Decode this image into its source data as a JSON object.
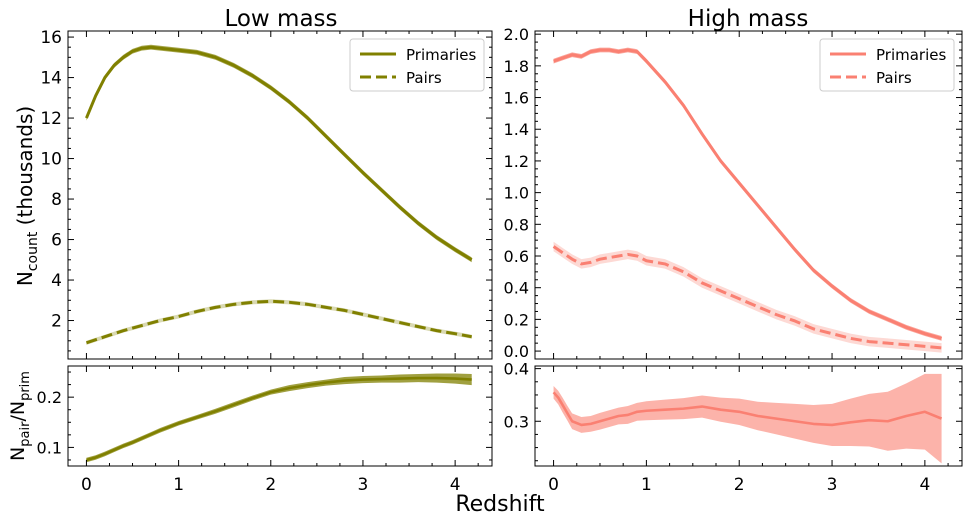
{
  "figure": {
    "xlabel": "Redshift",
    "ylabel_main_base": "N",
    "ylabel_main_sub": "count",
    "ylabel_main_rest": " (thousands)",
    "ylabel_ratio_a": "N",
    "ylabel_ratio_a_sub": "pair",
    "ylabel_ratio_b": "/N",
    "ylabel_ratio_b_sub": "prim"
  },
  "chart_data": [
    {
      "panel": "low-main",
      "type": "line",
      "title": "Low mass",
      "color": "#808000",
      "xlim": [
        -0.2,
        4.4
      ],
      "ylim": [
        0.1,
        16.3
      ],
      "xticks": [
        0,
        1,
        2,
        3,
        4
      ],
      "yticks": [
        2,
        4,
        6,
        8,
        10,
        12,
        14,
        16
      ],
      "legend": "top-right",
      "series": [
        {
          "name": "Primaries",
          "style": "solid",
          "x": [
            0,
            0.1,
            0.2,
            0.3,
            0.4,
            0.5,
            0.6,
            0.7,
            0.8,
            0.9,
            1.0,
            1.2,
            1.4,
            1.6,
            1.8,
            2.0,
            2.2,
            2.4,
            2.6,
            2.8,
            3.0,
            3.2,
            3.4,
            3.6,
            3.8,
            4.0,
            4.18
          ],
          "y": [
            12.0,
            13.1,
            14.0,
            14.6,
            15.0,
            15.3,
            15.45,
            15.5,
            15.45,
            15.4,
            15.35,
            15.25,
            15.0,
            14.6,
            14.1,
            13.5,
            12.8,
            12.0,
            11.1,
            10.2,
            9.3,
            8.45,
            7.6,
            6.8,
            6.1,
            5.5,
            5.0
          ],
          "band": 0.12
        },
        {
          "name": "Pairs",
          "style": "dashed",
          "x": [
            0,
            0.2,
            0.4,
            0.6,
            0.8,
            1.0,
            1.2,
            1.4,
            1.6,
            1.8,
            2.0,
            2.2,
            2.4,
            2.6,
            2.8,
            3.0,
            3.2,
            3.4,
            3.6,
            3.8,
            4.0,
            4.18
          ],
          "y": [
            0.9,
            1.2,
            1.5,
            1.75,
            2.0,
            2.2,
            2.45,
            2.65,
            2.8,
            2.9,
            2.95,
            2.9,
            2.8,
            2.65,
            2.5,
            2.3,
            2.1,
            1.9,
            1.7,
            1.5,
            1.35,
            1.2
          ],
          "band": 0.1
        }
      ]
    },
    {
      "panel": "high-main",
      "type": "line",
      "title": "High mass",
      "color": "#fa8072",
      "xlim": [
        -0.2,
        4.4
      ],
      "ylim": [
        -0.05,
        2.02
      ],
      "xticks": [
        0,
        1,
        2,
        3,
        4
      ],
      "yticks": [
        0.0,
        0.2,
        0.4,
        0.6,
        0.8,
        1.0,
        1.2,
        1.4,
        1.6,
        1.8,
        2.0
      ],
      "ytick_labels": [
        "0.0",
        "0.2",
        "0.4",
        "0.6",
        "0.8",
        "1.0",
        "1.2",
        "1.4",
        "1.6",
        "1.8",
        "2.0"
      ],
      "legend": "top-right",
      "series": [
        {
          "name": "Primaries",
          "style": "solid",
          "x": [
            0,
            0.1,
            0.2,
            0.3,
            0.4,
            0.5,
            0.6,
            0.7,
            0.8,
            0.9,
            1.0,
            1.2,
            1.4,
            1.6,
            1.8,
            2.0,
            2.2,
            2.4,
            2.6,
            2.8,
            3.0,
            3.2,
            3.4,
            3.6,
            3.8,
            4.0,
            4.18
          ],
          "y": [
            1.83,
            1.85,
            1.87,
            1.86,
            1.89,
            1.9,
            1.9,
            1.89,
            1.9,
            1.89,
            1.83,
            1.7,
            1.55,
            1.37,
            1.2,
            1.06,
            0.92,
            0.78,
            0.64,
            0.51,
            0.41,
            0.32,
            0.25,
            0.2,
            0.15,
            0.11,
            0.08
          ],
          "band": 0.015
        },
        {
          "name": "Pairs",
          "style": "dashed",
          "x": [
            0,
            0.1,
            0.2,
            0.3,
            0.4,
            0.5,
            0.6,
            0.7,
            0.8,
            0.9,
            1.0,
            1.2,
            1.4,
            1.6,
            1.8,
            2.0,
            2.2,
            2.4,
            2.6,
            2.8,
            3.0,
            3.2,
            3.4,
            3.6,
            3.8,
            4.0,
            4.18
          ],
          "y": [
            0.66,
            0.62,
            0.58,
            0.55,
            0.56,
            0.58,
            0.59,
            0.6,
            0.61,
            0.6,
            0.57,
            0.55,
            0.5,
            0.43,
            0.38,
            0.33,
            0.28,
            0.23,
            0.19,
            0.14,
            0.11,
            0.08,
            0.06,
            0.05,
            0.04,
            0.03,
            0.02
          ],
          "band": 0.03
        }
      ]
    },
    {
      "panel": "low-ratio",
      "type": "line",
      "color": "#808000",
      "xlim": [
        -0.2,
        4.4
      ],
      "ylim": [
        0.063,
        0.262
      ],
      "xticks": [
        0,
        1,
        2,
        3,
        4
      ],
      "yticks": [
        0.1,
        0.2
      ],
      "ytick_labels": [
        "0.1",
        "0.2"
      ],
      "series": [
        {
          "style": "solid",
          "x": [
            0,
            0.1,
            0.2,
            0.3,
            0.4,
            0.5,
            0.6,
            0.7,
            0.8,
            0.9,
            1.0,
            1.2,
            1.4,
            1.6,
            1.8,
            2.0,
            2.2,
            2.4,
            2.6,
            2.8,
            3.0,
            3.2,
            3.4,
            3.6,
            3.8,
            4.0,
            4.18
          ],
          "y": [
            0.075,
            0.08,
            0.087,
            0.095,
            0.103,
            0.11,
            0.118,
            0.126,
            0.134,
            0.141,
            0.148,
            0.16,
            0.172,
            0.185,
            0.198,
            0.21,
            0.218,
            0.224,
            0.229,
            0.233,
            0.235,
            0.236,
            0.237,
            0.238,
            0.238,
            0.237,
            0.235
          ],
          "band_lo": [
            0.0045,
            0.0045,
            0.0045,
            0.0045,
            0.0045,
            0.0045,
            0.0045,
            0.0045,
            0.0045,
            0.0045,
            0.0045,
            0.0045,
            0.005,
            0.005,
            0.005,
            0.005,
            0.006,
            0.006,
            0.006,
            0.007,
            0.007,
            0.007,
            0.008,
            0.008,
            0.009,
            0.01,
            0.011
          ],
          "band_hi": [
            0.0045,
            0.0045,
            0.0045,
            0.0045,
            0.0045,
            0.0045,
            0.0045,
            0.0045,
            0.0045,
            0.0045,
            0.0045,
            0.0045,
            0.005,
            0.005,
            0.005,
            0.005,
            0.006,
            0.006,
            0.006,
            0.007,
            0.007,
            0.007,
            0.008,
            0.008,
            0.009,
            0.01,
            0.011
          ]
        }
      ]
    },
    {
      "panel": "high-ratio",
      "type": "line",
      "color": "#fa8072",
      "xlim": [
        -0.2,
        4.4
      ],
      "ylim": [
        0.215,
        0.405
      ],
      "xticks": [
        0,
        1,
        2,
        3,
        4
      ],
      "yticks": [
        0.3,
        0.4
      ],
      "ytick_labels": [
        "0.3",
        "0.4"
      ],
      "series": [
        {
          "style": "solid",
          "x": [
            0,
            0.05,
            0.1,
            0.15,
            0.2,
            0.3,
            0.4,
            0.5,
            0.6,
            0.7,
            0.8,
            0.9,
            1.0,
            1.2,
            1.4,
            1.6,
            1.8,
            2.0,
            2.2,
            2.4,
            2.6,
            2.8,
            3.0,
            3.2,
            3.4,
            3.6,
            3.8,
            4.0,
            4.18
          ],
          "y": [
            0.355,
            0.345,
            0.33,
            0.315,
            0.3,
            0.293,
            0.295,
            0.3,
            0.305,
            0.31,
            0.312,
            0.318,
            0.32,
            0.322,
            0.324,
            0.328,
            0.322,
            0.318,
            0.31,
            0.305,
            0.3,
            0.295,
            0.293,
            0.298,
            0.302,
            0.3,
            0.31,
            0.318,
            0.305
          ],
          "band_lo": [
            0.012,
            0.013,
            0.014,
            0.014,
            0.015,
            0.015,
            0.015,
            0.016,
            0.016,
            0.016,
            0.017,
            0.017,
            0.018,
            0.019,
            0.02,
            0.021,
            0.023,
            0.025,
            0.027,
            0.03,
            0.033,
            0.036,
            0.04,
            0.045,
            0.05,
            0.056,
            0.062,
            0.072,
            0.085
          ],
          "band_hi": [
            0.012,
            0.013,
            0.014,
            0.014,
            0.015,
            0.015,
            0.015,
            0.016,
            0.016,
            0.016,
            0.017,
            0.017,
            0.018,
            0.019,
            0.02,
            0.021,
            0.023,
            0.025,
            0.027,
            0.03,
            0.033,
            0.036,
            0.04,
            0.045,
            0.05,
            0.056,
            0.062,
            0.072,
            0.085
          ]
        }
      ]
    }
  ]
}
